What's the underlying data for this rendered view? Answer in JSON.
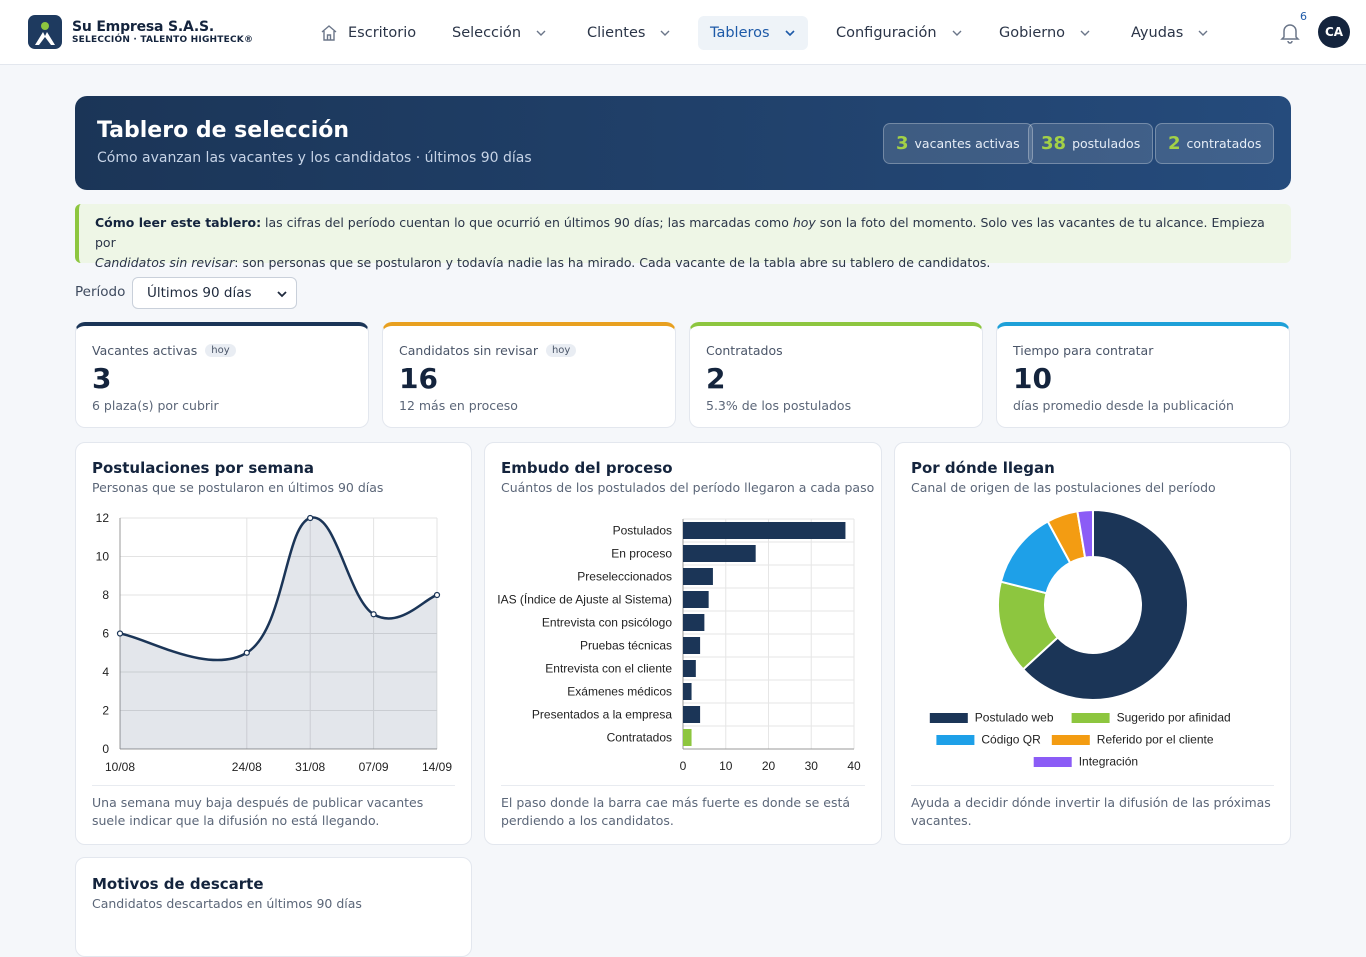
{
  "brand": {
    "name": "Su Empresa S.A.S.",
    "sub": "SELECCIÓN · TALENTO HIGHTECK®"
  },
  "nav": {
    "items": [
      "Escritorio",
      "Selección",
      "Clientes",
      "Tableros",
      "Configuración",
      "Gobierno",
      "Ayudas"
    ],
    "notifications": "6",
    "avatar": "CA"
  },
  "hero": {
    "title": "Tablero de selección",
    "subtitle": "Cómo avanzan las vacantes y los candidatos · últimos 90 días",
    "pills": [
      {
        "value": "3",
        "label": "vacantes activas"
      },
      {
        "value": "38",
        "label": "postulados"
      },
      {
        "value": "2",
        "label": "contratados"
      }
    ]
  },
  "info": {
    "lead": "Cómo leer este tablero:",
    "t1": " las cifras del período cuentan lo que ocurrió en últimos 90 días; las marcadas como ",
    "em1": "hoy",
    "t2": " son la foto del momento. Solo ves las vacantes de tu alcance. Empieza por ",
    "em2": "Candidatos sin revisar",
    "t3": ": son personas que se postularon y todavía nadie las ha mirado. Cada vacante de la tabla abre su tablero de candidatos."
  },
  "period": {
    "label": "Período",
    "selected": "Últimos 90 días"
  },
  "kpis": [
    {
      "label": "Vacantes activas",
      "badge": "hoy",
      "value": "3",
      "note": "6 plaza(s) por cubrir",
      "color": "#1b3557"
    },
    {
      "label": "Candidatos sin revisar",
      "badge": "hoy",
      "value": "16",
      "note": "12 más en proceso",
      "color": "#e8a020"
    },
    {
      "label": "Contratados",
      "badge": "",
      "value": "2",
      "note": "5.3% de los postulados",
      "color": "#8dc63f"
    },
    {
      "label": "Tiempo para contratar",
      "badge": "",
      "value": "10",
      "note": "días promedio desde la publicación",
      "color": "#1ea0d8"
    }
  ],
  "cards": {
    "weekly": {
      "title": "Postulaciones por semana",
      "subtitle": "Personas que se postularon en últimos 90 días",
      "foot": "Una semana muy baja después de publicar vacantes suele indicar que la difusión no está llegando."
    },
    "funnel": {
      "title": "Embudo del proceso",
      "subtitle": "Cuántos de los postulados del período llegaron a cada paso",
      "foot": "El paso donde la barra cae más fuerte es donde se está perdiendo a los candidatos."
    },
    "sources": {
      "title": "Por dónde llegan",
      "subtitle": "Canal de origen de las postulaciones del período",
      "foot": "Ayuda a decidir dónde invertir la difusión de las próximas vacantes."
    },
    "discard": {
      "title": "Motivos de descarte",
      "subtitle": "Candidatos descartados en últimos 90 días"
    }
  },
  "chart_data": [
    {
      "type": "area",
      "categories": [
        "10/08",
        "24/08",
        "31/08",
        "07/09",
        "14/09"
      ],
      "x_positions": [
        0,
        2,
        3,
        4,
        5
      ],
      "values": [
        6,
        5,
        12,
        7,
        8
      ],
      "ylim": [
        0,
        12
      ],
      "yticks": [
        0,
        2,
        4,
        6,
        8,
        10,
        12
      ],
      "grid": true,
      "color": "#1b3557"
    },
    {
      "type": "bar",
      "orientation": "horizontal",
      "categories": [
        "Postulados",
        "En proceso",
        "Preseleccionados",
        "IAS (Índice de Ajuste al Sistema)",
        "Entrevista con psicólogo",
        "Pruebas técnicas",
        "Entrevista con el cliente",
        "Exámenes médicos",
        "Presentados a la empresa",
        "Contratados"
      ],
      "values": [
        38,
        17,
        7,
        6,
        5,
        4,
        3,
        2,
        4,
        2
      ],
      "colors": [
        "#1b3557",
        "#1b3557",
        "#1b3557",
        "#1b3557",
        "#1b3557",
        "#1b3557",
        "#1b3557",
        "#1b3557",
        "#1b3557",
        "#8dc63f"
      ],
      "xlim": [
        0,
        40
      ],
      "xticks": [
        0,
        10,
        20,
        30,
        40
      ],
      "grid": true
    },
    {
      "type": "pie",
      "donut": true,
      "labels": [
        "Postulado web",
        "Sugerido por afinidad",
        "Código QR",
        "Referido por el cliente",
        "Integración"
      ],
      "values": [
        24,
        6,
        5,
        2,
        1
      ],
      "colors": [
        "#1b3557",
        "#8dc63f",
        "#1ea0e8",
        "#f39c12",
        "#8b5cf6"
      ],
      "legend": "bottom"
    }
  ]
}
